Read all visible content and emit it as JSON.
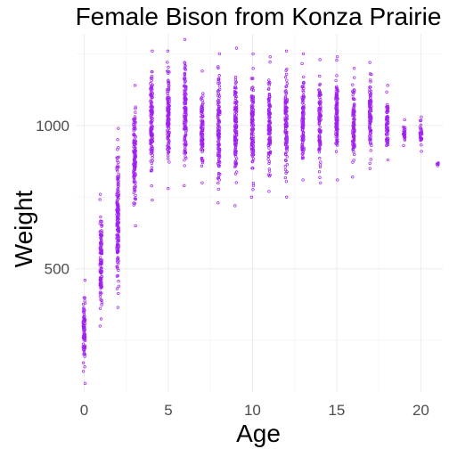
{
  "chart_data": {
    "type": "scatter",
    "title": "Female Bison from Konza Prairie",
    "xlabel": "Age",
    "ylabel": "Weight",
    "xlim": [
      -0.5,
      21.3
    ],
    "ylim": [
      70,
      1320
    ],
    "x_ticks": [
      0,
      5,
      10,
      15,
      20
    ],
    "x_tick_labels": [
      "0",
      "5",
      "10",
      "15",
      "20"
    ],
    "x_minor_ticks": [
      2.5,
      7.5,
      12.5,
      17.5
    ],
    "y_ticks": [
      500,
      1000
    ],
    "y_tick_labels": [
      "500",
      "1000"
    ],
    "y_minor_ticks": [
      250,
      750,
      1250
    ],
    "grid": true,
    "legend": "none",
    "point_color": "#a020f0",
    "series": [
      {
        "points": [
          {
            "x": 0,
            "y": [
              100,
              460
            ]
          },
          {
            "x": 1,
            "y": [
              300,
              760
            ]
          },
          {
            "x": 2,
            "y": [
              365,
              990
            ]
          },
          {
            "x": 3,
            "y": [
              650,
              1140
            ]
          },
          {
            "x": 4,
            "y": [
              740,
              1260
            ]
          },
          {
            "x": 5,
            "y": [
              780,
              1260
            ]
          },
          {
            "x": 6,
            "y": [
              790,
              1300
            ]
          },
          {
            "x": 7,
            "y": [
              800,
              1190
            ]
          },
          {
            "x": 8,
            "y": [
              730,
              1250
            ]
          },
          {
            "x": 9,
            "y": [
              720,
              1270
            ]
          },
          {
            "x": 10,
            "y": [
              750,
              1250
            ]
          },
          {
            "x": 11,
            "y": [
              770,
              1240
            ]
          },
          {
            "x": 12,
            "y": [
              750,
              1260
            ]
          },
          {
            "x": 13,
            "y": [
              810,
              1250
            ]
          },
          {
            "x": 14,
            "y": [
              800,
              1230
            ]
          },
          {
            "x": 15,
            "y": [
              810,
              1240
            ]
          },
          {
            "x": 16,
            "y": [
              820,
              1200
            ]
          },
          {
            "x": 17,
            "y": [
              850,
              1220
            ]
          },
          {
            "x": 18,
            "y": [
              880,
              1140
            ]
          },
          {
            "x": 19,
            "y": [
              930,
              1020
            ]
          },
          {
            "x": 20,
            "y": [
              910,
              1030
            ]
          },
          {
            "x": 21,
            "y": [
              860,
              870
            ]
          }
        ]
      }
    ]
  }
}
